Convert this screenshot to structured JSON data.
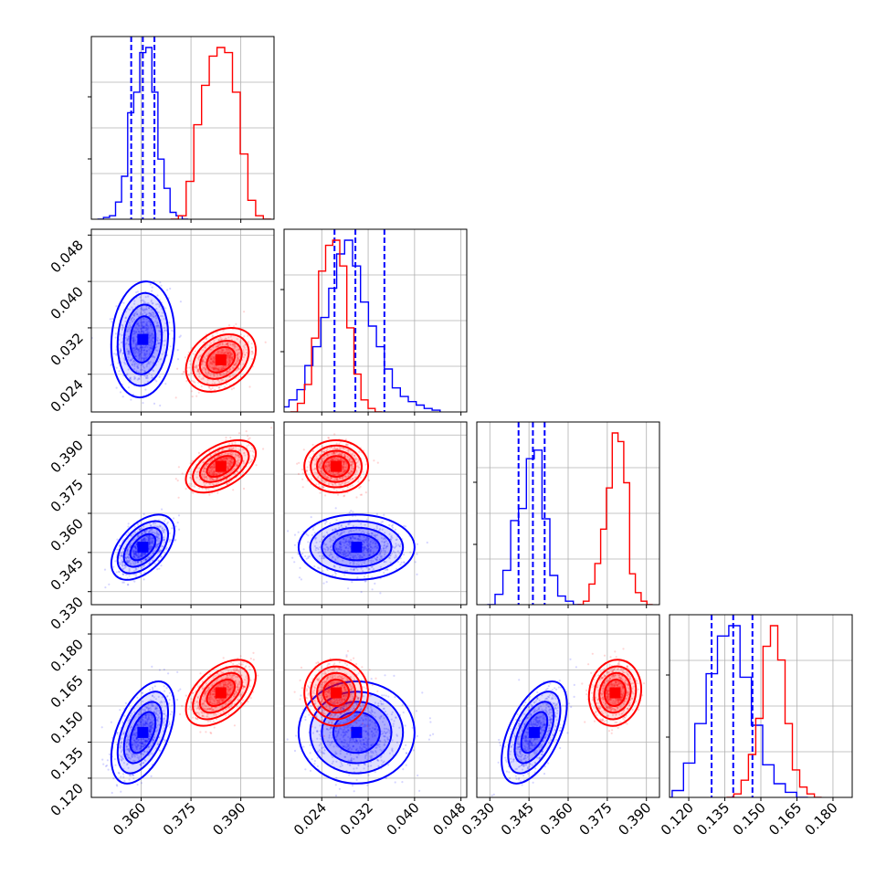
{
  "chart_data": {
    "type": "corner",
    "grid": true,
    "variables": [
      {
        "range": [
          0.345,
          0.4
        ],
        "ticks": [
          0.36,
          0.375,
          0.39
        ],
        "tick_labels": [
          "0.360",
          "0.375",
          "0.390"
        ]
      },
      {
        "range": [
          0.0175,
          0.049
        ],
        "ticks": [
          0.024,
          0.032,
          0.04,
          0.048
        ],
        "tick_labels": [
          "0.024",
          "0.032",
          "0.040",
          "0.048"
        ]
      },
      {
        "range": [
          0.325,
          0.395
        ],
        "ticks": [
          0.33,
          0.345,
          0.36,
          0.375,
          0.39
        ],
        "tick_labels": [
          "0.330",
          "0.345",
          "0.360",
          "0.375",
          "0.390"
        ]
      },
      {
        "range": [
          0.112,
          0.188
        ],
        "ticks": [
          0.12,
          0.135,
          0.15,
          0.165,
          0.18
        ],
        "tick_labels": [
          "0.120",
          "0.135",
          "0.150",
          "0.165",
          "0.180"
        ]
      }
    ],
    "series": [
      {
        "color": "#0000ff",
        "mean": [
          0.3605,
          0.03,
          0.347,
          0.139
        ],
        "std": [
          0.0038,
          0.004,
          0.005,
          0.0085
        ],
        "corr": [
          [
            0,
            1,
            0.1
          ],
          [
            0,
            2,
            0.5
          ],
          [
            0,
            3,
            0.5
          ],
          [
            1,
            2,
            0.0
          ],
          [
            1,
            3,
            0.0
          ],
          [
            2,
            3,
            0.55
          ]
        ],
        "quantiles": [
          [
            0.357,
            0.3605,
            0.364
          ],
          [
            0.0262,
            0.0298,
            0.0348
          ],
          [
            0.341,
            0.3465,
            0.351
          ],
          [
            0.1295,
            0.1385,
            0.1465
          ]
        ],
        "histograms": [
          [
            0.0,
            0.01,
            0.02,
            0.1,
            0.25,
            0.62,
            0.74,
            0.97,
            1.0,
            0.74,
            0.35,
            0.18,
            0.04,
            0.02,
            0.0
          ],
          [
            0.01,
            0.03,
            0.07,
            0.13,
            0.27,
            0.38,
            0.55,
            0.72,
            0.92,
            1.0,
            0.85,
            0.64,
            0.5,
            0.38,
            0.25,
            0.14,
            0.09,
            0.06,
            0.04,
            0.02,
            0.01
          ],
          [
            0.0,
            0.06,
            0.2,
            0.49,
            0.56,
            0.85,
            0.9,
            0.5,
            0.17,
            0.05,
            0.02,
            0.0
          ],
          [
            0.0,
            0.04,
            0.2,
            0.43,
            0.72,
            0.94,
            1.0,
            0.7,
            0.42,
            0.19,
            0.08,
            0.03,
            0.0
          ]
        ]
      },
      {
        "color": "#ff0000",
        "mean": [
          0.384,
          0.0265,
          0.378,
          0.1555
        ],
        "std": [
          0.0042,
          0.0022,
          0.004,
          0.0055
        ],
        "corr": [
          [
            0,
            1,
            0.3
          ],
          [
            0,
            2,
            0.5
          ],
          [
            0,
            3,
            0.5
          ],
          [
            1,
            2,
            0.0
          ],
          [
            1,
            3,
            0.0
          ],
          [
            2,
            3,
            0.1
          ]
        ],
        "quantiles": [],
        "histograms": [
          [
            0.0,
            0.02,
            0.22,
            0.55,
            0.78,
            0.95,
            1.0,
            0.97,
            0.74,
            0.38,
            0.11,
            0.02,
            0.0
          ],
          [
            0.0,
            0.05,
            0.16,
            0.43,
            0.82,
            0.97,
            1.0,
            0.85,
            0.49,
            0.22,
            0.07,
            0.02,
            0.0
          ],
          [
            0.0,
            0.02,
            0.12,
            0.24,
            0.44,
            0.68,
            1.0,
            0.95,
            0.71,
            0.18,
            0.07,
            0.02,
            0.0
          ],
          [
            0.0,
            0.02,
            0.1,
            0.25,
            0.46,
            0.88,
            1.0,
            0.8,
            0.43,
            0.16,
            0.06,
            0.02,
            0.0
          ]
        ]
      }
    ]
  }
}
